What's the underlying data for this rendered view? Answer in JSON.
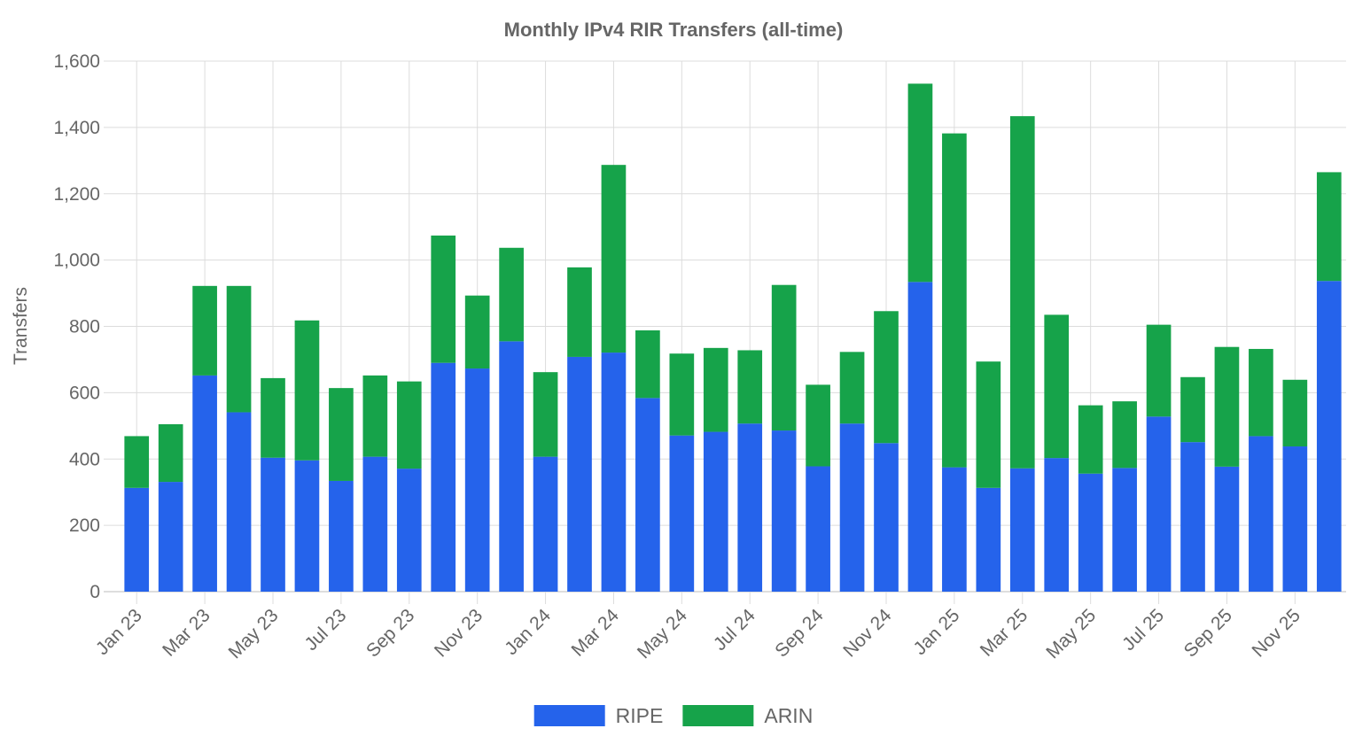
{
  "chart_data": {
    "type": "bar",
    "stacked": true,
    "title": "Monthly IPv4 RIR Transfers (all-time)",
    "xlabel": "",
    "ylabel": "Transfers",
    "ylim": [
      0,
      1600
    ],
    "yticks": [
      0,
      200,
      400,
      600,
      800,
      1000,
      1200,
      1400,
      1600
    ],
    "ytick_labels": [
      "0",
      "200",
      "400",
      "600",
      "800",
      "1,000",
      "1,200",
      "1,400",
      "1,600"
    ],
    "grid": true,
    "legend_position": "bottom",
    "categories": [
      "Jan 23",
      "Feb 23",
      "Mar 23",
      "Apr 23",
      "May 23",
      "Jun 23",
      "Jul 23",
      "Aug 23",
      "Sep 23",
      "Oct 23",
      "Nov 23",
      "Dec 23",
      "Jan 24",
      "Feb 24",
      "Mar 24",
      "Apr 24",
      "May 24",
      "Jun 24",
      "Jul 24",
      "Aug 24",
      "Sep 24",
      "Oct 24",
      "Nov 24",
      "Dec 24",
      "Jan 25",
      "Feb 25",
      "Mar 25",
      "Apr 25",
      "May 25",
      "Jun 25",
      "Jul 25",
      "Aug 25",
      "Sep 25",
      "Oct 25",
      "Nov 25",
      "Dec 25"
    ],
    "shown_x_labels": [
      "Jan 23",
      "Mar 23",
      "May 23",
      "Jul 23",
      "Sep 23",
      "Nov 23",
      "Jan 24",
      "Mar 24",
      "May 24",
      "Jul 24",
      "Sep 24",
      "Nov 24",
      "Jan 25",
      "Mar 25",
      "May 25",
      "Jul 25",
      "Sep 25",
      "Nov 25"
    ],
    "series": [
      {
        "name": "RIPE",
        "color": "#2563eb",
        "values": [
          313,
          331,
          652,
          541,
          404,
          396,
          334,
          407,
          371,
          690,
          673,
          755,
          407,
          708,
          721,
          584,
          471,
          482,
          507,
          486,
          378,
          507,
          448,
          934,
          375,
          313,
          372,
          403,
          356,
          373,
          528,
          451,
          377,
          469,
          438,
          937
        ]
      },
      {
        "name": "ARIN",
        "color": "#16a34a",
        "values": [
          156,
          174,
          270,
          381,
          240,
          422,
          280,
          245,
          263,
          384,
          220,
          282,
          255,
          270,
          566,
          204,
          247,
          253,
          221,
          439,
          246,
          216,
          398,
          598,
          1007,
          381,
          1062,
          432,
          206,
          201,
          277,
          196,
          361,
          263,
          201,
          328
        ]
      }
    ]
  }
}
